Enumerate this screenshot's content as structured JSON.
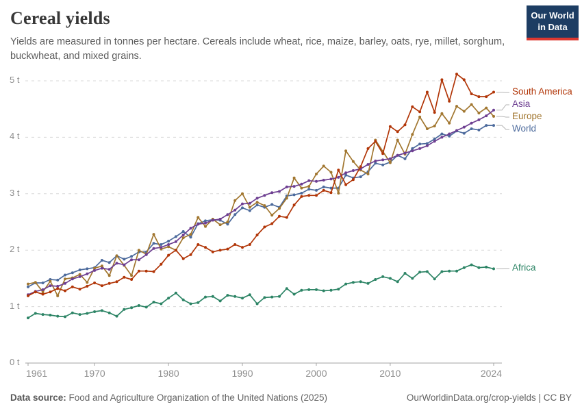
{
  "header": {
    "title": "Cereal yields",
    "subtitle_line1": "Yields are measured in tonnes per hectare. Cereals include wheat, rice, maize, barley, oats, rye, millet, sorghum,",
    "subtitle_line2": "buckwheat, and mixed grains.",
    "logo": {
      "line1": "Our World",
      "line2": "in Data",
      "bg_color": "#1d3d63",
      "accent_color": "#dc3830"
    }
  },
  "footer": {
    "source_label": "Data source:",
    "source_text": " Food and Agriculture Organization of the United Nations (2025)",
    "link_text": "OurWorldinData.org/crop-yields",
    "divider": " | ",
    "license": "CC BY"
  },
  "chart_data": {
    "type": "line",
    "title": "Cereal yields",
    "unit": "tonnes per hectare",
    "xlabel": "",
    "ylabel": "",
    "ylim": [
      0,
      5.3
    ],
    "xlim": [
      1961,
      2024
    ],
    "grid": "horizontal dashed",
    "legend_position": "right-of-line-ends",
    "yticks": [
      "0 t",
      "1 t",
      "2 t",
      "3 t",
      "4 t",
      "5 t"
    ],
    "xticks": [
      1961,
      1970,
      1980,
      1990,
      2000,
      2010,
      2024
    ],
    "x": [
      1961,
      1962,
      1963,
      1964,
      1965,
      1966,
      1967,
      1968,
      1969,
      1970,
      1971,
      1972,
      1973,
      1974,
      1975,
      1976,
      1977,
      1978,
      1979,
      1980,
      1981,
      1982,
      1983,
      1984,
      1985,
      1986,
      1987,
      1988,
      1989,
      1990,
      1991,
      1992,
      1993,
      1994,
      1995,
      1996,
      1997,
      1998,
      1999,
      2000,
      2001,
      2002,
      2003,
      2004,
      2005,
      2006,
      2007,
      2008,
      2009,
      2010,
      2011,
      2012,
      2013,
      2014,
      2015,
      2016,
      2017,
      2018,
      2019,
      2020,
      2021,
      2022,
      2023,
      2024
    ],
    "series": [
      {
        "name": "South America",
        "color": "#B13507",
        "values": [
          1.19,
          1.26,
          1.22,
          1.26,
          1.32,
          1.28,
          1.35,
          1.31,
          1.36,
          1.42,
          1.37,
          1.41,
          1.44,
          1.52,
          1.48,
          1.63,
          1.63,
          1.62,
          1.75,
          1.91,
          2.0,
          1.85,
          1.92,
          2.1,
          2.05,
          1.97,
          2.0,
          2.02,
          2.1,
          2.05,
          2.1,
          2.27,
          2.41,
          2.47,
          2.6,
          2.58,
          2.8,
          2.95,
          2.97,
          2.97,
          3.06,
          3.02,
          3.42,
          3.16,
          3.25,
          3.48,
          3.8,
          3.93,
          3.71,
          4.19,
          4.1,
          4.22,
          4.54,
          4.45,
          4.8,
          4.44,
          5.02,
          4.64,
          5.12,
          5.02,
          4.77,
          4.72,
          4.72,
          4.8
        ]
      },
      {
        "name": "Asia",
        "color": "#6D3E91",
        "values": [
          1.21,
          1.27,
          1.3,
          1.37,
          1.36,
          1.41,
          1.49,
          1.53,
          1.58,
          1.64,
          1.68,
          1.66,
          1.77,
          1.74,
          1.83,
          1.83,
          1.92,
          2.03,
          2.05,
          2.1,
          2.15,
          2.27,
          2.39,
          2.46,
          2.48,
          2.53,
          2.55,
          2.63,
          2.71,
          2.82,
          2.83,
          2.92,
          2.97,
          3.02,
          3.04,
          3.12,
          3.13,
          3.17,
          3.23,
          3.22,
          3.24,
          3.26,
          3.29,
          3.37,
          3.41,
          3.44,
          3.52,
          3.58,
          3.6,
          3.62,
          3.68,
          3.72,
          3.76,
          3.8,
          3.85,
          3.93,
          4.0,
          4.06,
          4.12,
          4.18,
          4.25,
          4.31,
          4.38,
          4.48
        ]
      },
      {
        "name": "Europe",
        "color": "#A1762F",
        "values": [
          1.4,
          1.43,
          1.26,
          1.45,
          1.19,
          1.49,
          1.51,
          1.57,
          1.43,
          1.68,
          1.72,
          1.55,
          1.9,
          1.73,
          1.55,
          2.0,
          1.93,
          2.28,
          2.02,
          2.06,
          2.0,
          2.22,
          2.28,
          2.58,
          2.42,
          2.55,
          2.45,
          2.5,
          2.88,
          3.0,
          2.76,
          2.85,
          2.79,
          2.62,
          2.74,
          2.92,
          3.28,
          3.1,
          3.13,
          3.35,
          3.49,
          3.38,
          3.01,
          3.76,
          3.57,
          3.42,
          3.35,
          3.95,
          3.75,
          3.55,
          3.95,
          3.7,
          4.05,
          4.36,
          4.15,
          4.2,
          4.42,
          4.25,
          4.55,
          4.46,
          4.58,
          4.43,
          4.52,
          4.37
        ]
      },
      {
        "name": "World",
        "color": "#4C6A9C",
        "values": [
          1.35,
          1.42,
          1.42,
          1.48,
          1.47,
          1.56,
          1.6,
          1.65,
          1.67,
          1.69,
          1.82,
          1.78,
          1.9,
          1.84,
          1.89,
          1.97,
          1.97,
          2.12,
          2.1,
          2.16,
          2.24,
          2.33,
          2.23,
          2.47,
          2.52,
          2.54,
          2.53,
          2.46,
          2.63,
          2.75,
          2.7,
          2.8,
          2.76,
          2.81,
          2.76,
          2.96,
          2.98,
          3.01,
          3.08,
          3.06,
          3.12,
          3.1,
          3.1,
          3.33,
          3.28,
          3.3,
          3.39,
          3.54,
          3.51,
          3.56,
          3.68,
          3.62,
          3.8,
          3.88,
          3.89,
          3.97,
          4.06,
          4.02,
          4.11,
          4.07,
          4.15,
          4.13,
          4.21,
          4.21
        ]
      },
      {
        "name": "Africa",
        "color": "#2C8465",
        "values": [
          0.8,
          0.88,
          0.86,
          0.85,
          0.83,
          0.82,
          0.89,
          0.86,
          0.88,
          0.91,
          0.93,
          0.89,
          0.83,
          0.95,
          0.98,
          1.02,
          0.99,
          1.08,
          1.05,
          1.15,
          1.24,
          1.12,
          1.05,
          1.07,
          1.17,
          1.18,
          1.1,
          1.2,
          1.18,
          1.15,
          1.21,
          1.05,
          1.16,
          1.17,
          1.18,
          1.32,
          1.22,
          1.29,
          1.3,
          1.3,
          1.28,
          1.29,
          1.31,
          1.4,
          1.43,
          1.44,
          1.41,
          1.48,
          1.53,
          1.5,
          1.44,
          1.59,
          1.5,
          1.61,
          1.62,
          1.49,
          1.62,
          1.63,
          1.63,
          1.69,
          1.74,
          1.69,
          1.7,
          1.67
        ]
      }
    ]
  }
}
